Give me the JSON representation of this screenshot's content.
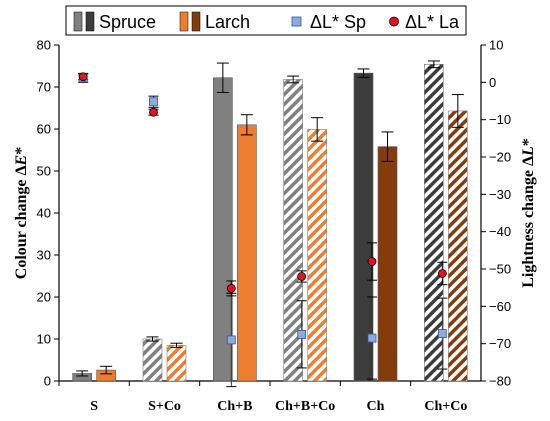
{
  "chart_data": {
    "type": "bar",
    "categories": [
      "S",
      "S+Co",
      "Ch+B",
      "Ch+B+Co",
      "Ch",
      "Ch+Co"
    ],
    "y_left": {
      "label_main": "Colour change Δ",
      "label_var": "E",
      "label_sup": "*",
      "range": [
        0,
        80
      ],
      "ticks": [
        0,
        10,
        20,
        30,
        40,
        50,
        60,
        70,
        80
      ]
    },
    "y_right": {
      "label_main": "Lightness change Δ",
      "label_var": "L",
      "label_sup": "*",
      "range": [
        -80,
        10
      ],
      "ticks": [
        -80,
        -70,
        -60,
        -50,
        -40,
        -30,
        -20,
        -10,
        0,
        10
      ]
    },
    "legend": {
      "position": "top",
      "entries": [
        {
          "label": "Spruce",
          "kind": "bar"
        },
        {
          "label": "Larch",
          "kind": "bar"
        },
        {
          "label": "ΔL* Sp",
          "kind": "marker-square"
        },
        {
          "label": "ΔL* La",
          "kind": "marker-circle"
        }
      ]
    },
    "bars": [
      {
        "name": "Spruce",
        "axis": "left",
        "values": [
          1.8,
          10.0,
          72.2,
          71.8,
          73.3,
          75.4
        ],
        "errors": [
          0.6,
          0.5,
          3.5,
          0.8,
          1.0,
          0.8
        ],
        "hatched": [
          false,
          true,
          false,
          true,
          false,
          true
        ]
      },
      {
        "name": "Larch",
        "axis": "left",
        "values": [
          2.6,
          8.5,
          61.0,
          59.9,
          55.8,
          64.3
        ],
        "errors": [
          0.9,
          0.5,
          2.4,
          2.8,
          3.5,
          3.9
        ],
        "hatched": [
          false,
          true,
          false,
          true,
          false,
          true
        ]
      }
    ],
    "markers": [
      {
        "name": "ΔL* Sp",
        "axis": "right",
        "marker": "square",
        "values": [
          1.2,
          -5.2,
          -69.0,
          -67.5,
          -68.5,
          -67.3
        ],
        "errors": [
          1.2,
          1.5,
          12.5,
          9.0,
          11.0,
          9.5
        ]
      },
      {
        "name": "ΔL* La",
        "axis": "right",
        "marker": "circle",
        "values": [
          1.5,
          -8.0,
          -55.2,
          -52.0,
          -48.0,
          -51.2
        ],
        "errors": [
          0.8,
          0.8,
          2.0,
          1.5,
          5.0,
          3.0
        ]
      }
    ],
    "colors": {
      "spruce": "#808080",
      "spruce_ch": "#3c3c3c",
      "larch": "#ed7d31",
      "larch_ch": "#843c0c",
      "marker_square": "#8eaadb",
      "marker_circle": "#e8101e",
      "hatch_bg": "#ffffff"
    },
    "bar_color_index": {
      "spruce": [
        "spruce",
        "spruce",
        "spruce",
        "spruce",
        "spruce_ch",
        "spruce_ch"
      ],
      "larch": [
        "larch",
        "larch",
        "larch",
        "larch",
        "larch_ch",
        "larch_ch"
      ]
    },
    "grid": false
  }
}
